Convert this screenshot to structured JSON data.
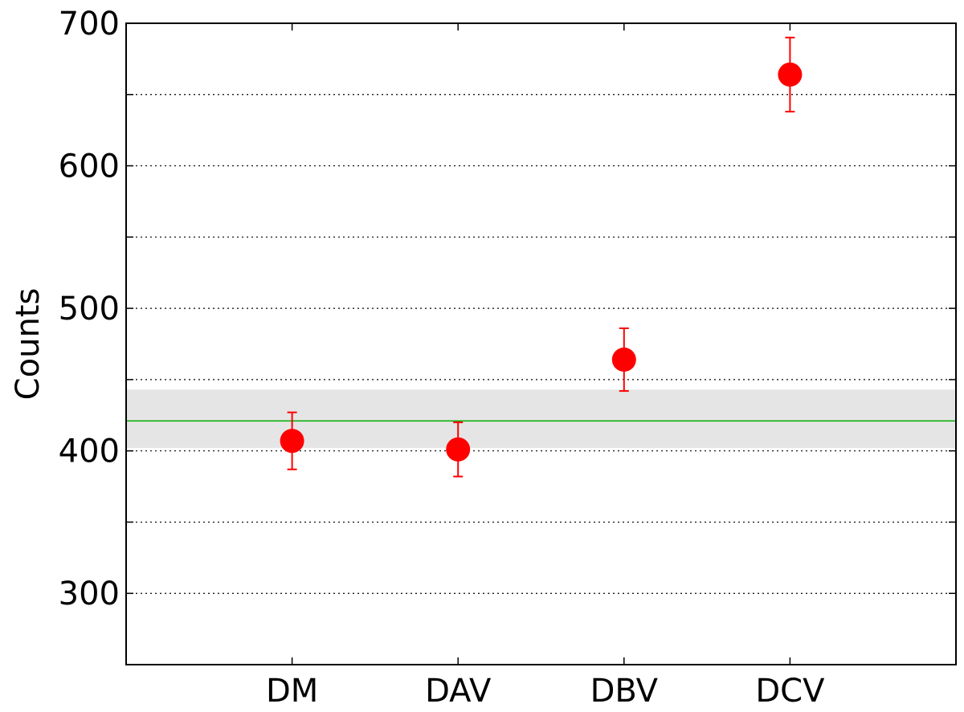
{
  "chart_data": {
    "type": "scatter",
    "title": "",
    "xlabel": "",
    "ylabel": "Counts",
    "categories": [
      "DM",
      "DAV",
      "DBV",
      "DCV"
    ],
    "series": [
      {
        "values": [
          407,
          401,
          464,
          664
        ],
        "error": [
          20,
          19,
          22,
          26
        ],
        "color": "#ff0000"
      }
    ],
    "reference_line": {
      "value": 421,
      "color": "#00aa00"
    },
    "reference_band": {
      "low": 402,
      "high": 443,
      "color": "#e5e5e5"
    },
    "ylim": [
      250,
      700
    ],
    "xlim": [
      -1,
      4
    ],
    "yticks": [
      300,
      400,
      500,
      600,
      700
    ],
    "ygrid": [
      300,
      350,
      400,
      450,
      500,
      550,
      600,
      650,
      700
    ],
    "grid": true,
    "grid_axis": "y"
  }
}
